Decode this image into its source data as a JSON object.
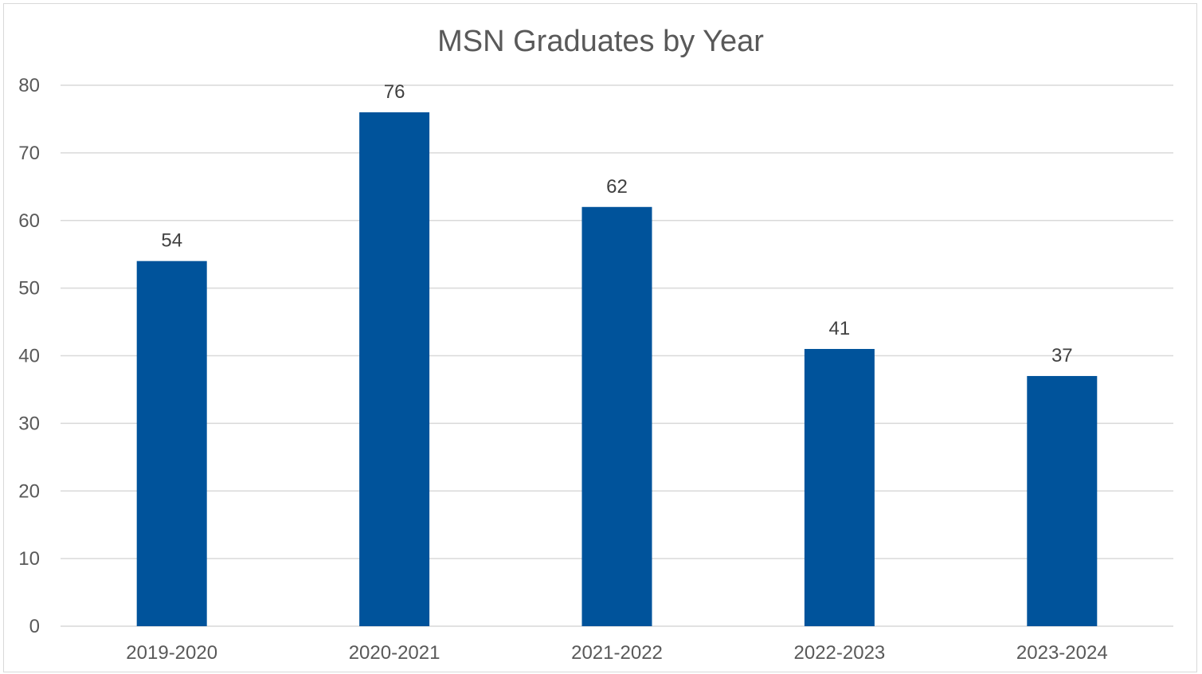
{
  "chart_data": {
    "type": "bar",
    "title": "MSN Graduates by Year",
    "xlabel": "",
    "ylabel": "",
    "categories": [
      "2019-2020",
      "2020-2021",
      "2021-2022",
      "2022-2023",
      "2023-2024"
    ],
    "values": [
      54,
      76,
      62,
      41,
      37
    ],
    "data_labels": [
      "54",
      "76",
      "62",
      "41",
      "37"
    ],
    "ylim": [
      0,
      80
    ],
    "yticks": [
      "0",
      "10",
      "20",
      "30",
      "40",
      "50",
      "60",
      "70",
      "80"
    ],
    "grid": true,
    "legend": "none",
    "bar_color": "#00539b"
  }
}
